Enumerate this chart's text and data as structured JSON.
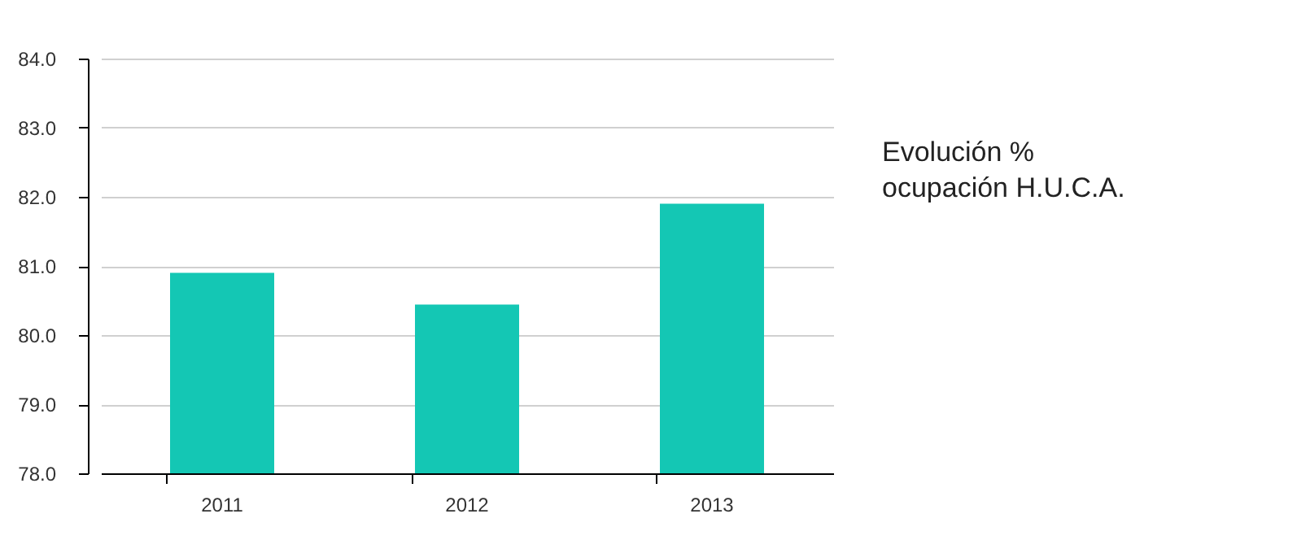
{
  "chart_data": {
    "type": "bar",
    "title": "Evolución %\nocupación H.U.C.A.",
    "categories": [
      "2011",
      "2012",
      "2013"
    ],
    "values": [
      80.9,
      80.44,
      81.9
    ],
    "color": "#14c7b4",
    "ylim": [
      78,
      84
    ],
    "yticks": [
      {
        "value": 78,
        "label": "78.0"
      },
      {
        "value": 79,
        "label": "79.0"
      },
      {
        "value": 80,
        "label": "80.0"
      },
      {
        "value": 81,
        "label": "81.0"
      },
      {
        "value": 82,
        "label": "82.0"
      },
      {
        "value": 83,
        "label": "83.0"
      },
      {
        "value": 84,
        "label": "84.0"
      }
    ],
    "grid": "y"
  }
}
